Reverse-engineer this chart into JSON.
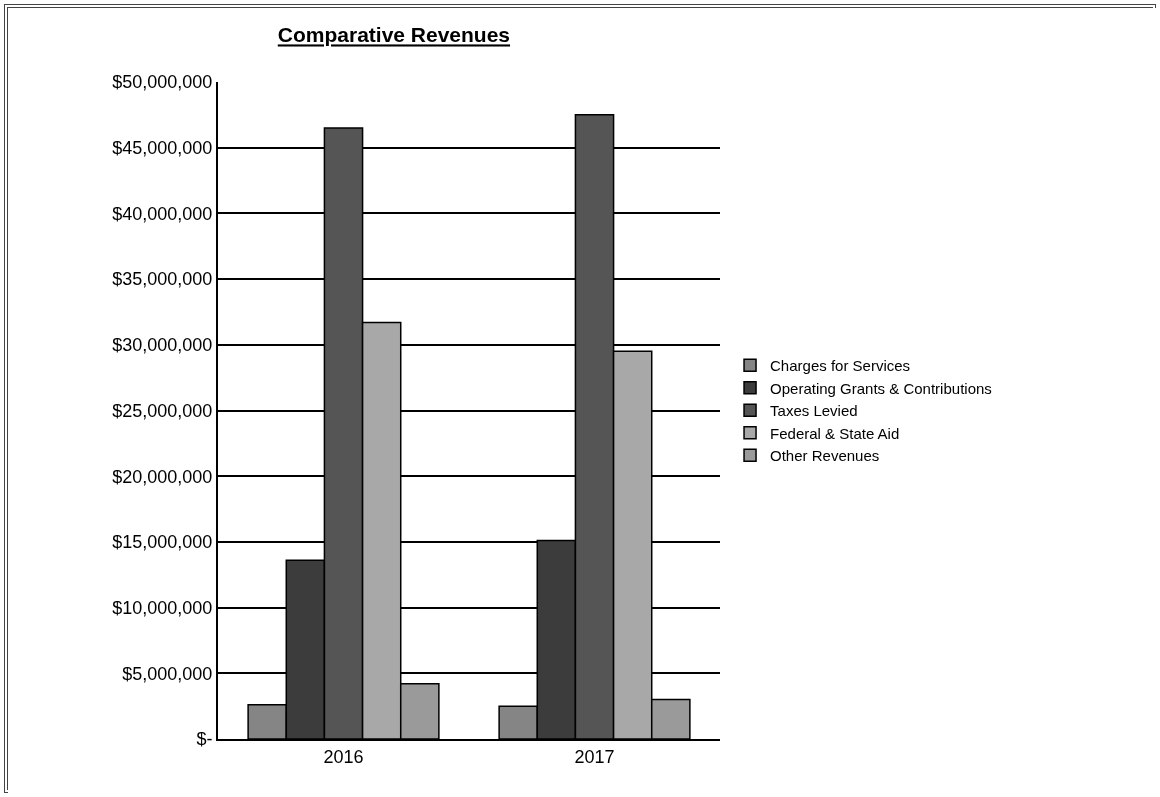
{
  "chart_data": {
    "type": "bar",
    "title": "Comparative Revenues",
    "categories": [
      "2016",
      "2017"
    ],
    "series": [
      {
        "name": "Charges for Services",
        "color": "#858585",
        "values": [
          2600000,
          2500000
        ]
      },
      {
        "name": "Operating Grants & Contributions",
        "color": "#3c3c3c",
        "values": [
          13600000,
          15100000
        ]
      },
      {
        "name": "Taxes Levied",
        "color": "#555555",
        "values": [
          46500000,
          47500000
        ]
      },
      {
        "name": "Federal & State Aid",
        "color": "#a8a8a8",
        "values": [
          31700000,
          29500000
        ]
      },
      {
        "name": "Other Revenues",
        "color": "#9a9a9a",
        "values": [
          4200000,
          3000000
        ]
      }
    ],
    "ylim": [
      0,
      50000000
    ],
    "yticks": [
      {
        "value": 0,
        "label": "$-"
      },
      {
        "value": 5000000,
        "label": "$5,000,000"
      },
      {
        "value": 10000000,
        "label": "$10,000,000"
      },
      {
        "value": 15000000,
        "label": "$15,000,000"
      },
      {
        "value": 20000000,
        "label": "$20,000,000"
      },
      {
        "value": 25000000,
        "label": "$25,000,000"
      },
      {
        "value": 30000000,
        "label": "$30,000,000"
      },
      {
        "value": 35000000,
        "label": "$35,000,000"
      },
      {
        "value": 40000000,
        "label": "$40,000,000"
      },
      {
        "value": 45000000,
        "label": "$45,000,000"
      },
      {
        "value": 50000000,
        "label": "$50,000,000"
      }
    ],
    "grid": "y",
    "legend": "right"
  }
}
